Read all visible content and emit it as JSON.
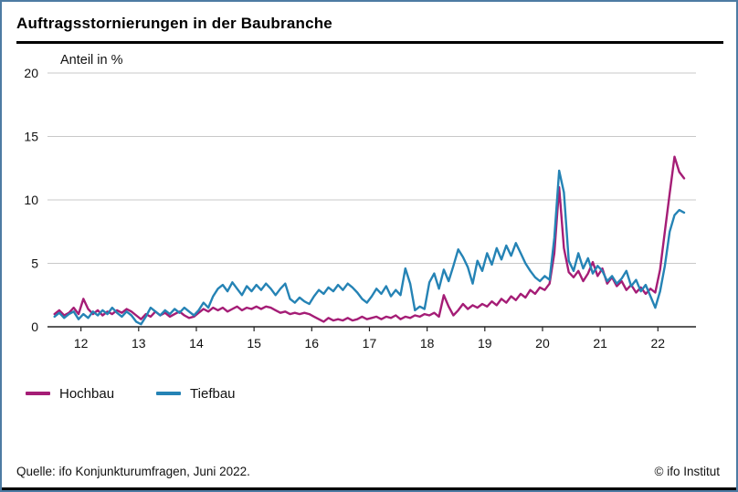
{
  "page": {
    "title": "Auftragsstornierungen in der Baubranche",
    "source": "Quelle: ifo Konjunkturumfragen, Juni 2022.",
    "copyright": "© ifo Institut"
  },
  "colors": {
    "frame": "#4d7ba3",
    "grid": "#c8c8c8",
    "axis": "#222222",
    "hochbau": "#a51d76",
    "tiefbau": "#2583b5"
  },
  "chart_data": {
    "type": "line",
    "title": "Auftragsstornierungen in der Baubranche",
    "ylabel": "Anteil in %",
    "xlabel": "",
    "ylim": [
      0,
      20
    ],
    "yticks": [
      0,
      5,
      10,
      15,
      20
    ],
    "xlim": [
      2011.42,
      2022.66
    ],
    "xtick_positions": [
      2012,
      2013,
      2014,
      2015,
      2016,
      2017,
      2018,
      2019,
      2020,
      2021,
      2022
    ],
    "xtick_labels": [
      "12",
      "13",
      "14",
      "15",
      "16",
      "17",
      "18",
      "19",
      "20",
      "21",
      "22"
    ],
    "x_start": 2011.5417,
    "x_step": 0.0833,
    "grid": true,
    "legend_position": "bottom-left",
    "series": [
      {
        "name": "Hochbau",
        "color": "#a51d76",
        "values": [
          1.0,
          1.3,
          0.9,
          1.1,
          1.5,
          1.0,
          2.2,
          1.4,
          1.0,
          1.3,
          0.9,
          1.2,
          1.0,
          1.3,
          1.1,
          1.4,
          1.2,
          0.9,
          0.6,
          1.0,
          0.8,
          1.2,
          0.9,
          1.1,
          0.8,
          1.0,
          1.2,
          0.9,
          0.7,
          0.8,
          1.1,
          1.4,
          1.2,
          1.5,
          1.3,
          1.5,
          1.2,
          1.4,
          1.6,
          1.3,
          1.5,
          1.4,
          1.6,
          1.4,
          1.6,
          1.5,
          1.3,
          1.1,
          1.2,
          1.0,
          1.1,
          1.0,
          1.1,
          1.0,
          0.8,
          0.6,
          0.4,
          0.7,
          0.5,
          0.6,
          0.5,
          0.7,
          0.5,
          0.6,
          0.8,
          0.6,
          0.7,
          0.8,
          0.6,
          0.8,
          0.7,
          0.9,
          0.6,
          0.8,
          0.7,
          0.9,
          0.8,
          1.0,
          0.9,
          1.1,
          0.8,
          2.5,
          1.6,
          0.9,
          1.3,
          1.8,
          1.4,
          1.7,
          1.5,
          1.8,
          1.6,
          2.0,
          1.7,
          2.2,
          1.9,
          2.4,
          2.1,
          2.6,
          2.3,
          2.9,
          2.6,
          3.1,
          2.9,
          3.4,
          5.8,
          11.0,
          6.2,
          4.3,
          3.9,
          4.4,
          3.6,
          4.2,
          5.1,
          4.0,
          4.6,
          3.4,
          3.9,
          3.2,
          3.6,
          2.9,
          3.3,
          2.7,
          3.1,
          2.6,
          3.0,
          2.7,
          4.5,
          7.5,
          10.5,
          13.4,
          12.2,
          11.7
        ]
      },
      {
        "name": "Tiefbau",
        "color": "#2583b5",
        "values": [
          0.8,
          1.1,
          0.7,
          1.0,
          1.2,
          0.6,
          1.0,
          0.7,
          1.2,
          0.9,
          1.3,
          1.0,
          1.5,
          1.1,
          0.8,
          1.2,
          0.9,
          0.4,
          0.2,
          0.8,
          1.5,
          1.2,
          0.9,
          1.3,
          1.0,
          1.4,
          1.1,
          1.5,
          1.2,
          0.9,
          1.3,
          1.9,
          1.5,
          2.4,
          3.0,
          3.3,
          2.8,
          3.5,
          3.0,
          2.5,
          3.2,
          2.8,
          3.3,
          2.9,
          3.4,
          3.0,
          2.5,
          3.0,
          3.4,
          2.2,
          1.9,
          2.3,
          2.0,
          1.8,
          2.4,
          2.9,
          2.6,
          3.1,
          2.8,
          3.3,
          2.9,
          3.4,
          3.1,
          2.7,
          2.2,
          1.9,
          2.4,
          3.0,
          2.6,
          3.2,
          2.4,
          2.9,
          2.5,
          4.6,
          3.4,
          1.3,
          1.6,
          1.4,
          3.5,
          4.2,
          3.0,
          4.5,
          3.6,
          4.8,
          6.1,
          5.5,
          4.7,
          3.4,
          5.2,
          4.4,
          5.8,
          4.9,
          6.2,
          5.3,
          6.4,
          5.6,
          6.6,
          5.8,
          5.0,
          4.4,
          3.9,
          3.6,
          4.0,
          3.7,
          7.0,
          12.3,
          10.6,
          5.2,
          4.4,
          5.8,
          4.6,
          5.4,
          4.2,
          4.8,
          4.4,
          3.6,
          4.0,
          3.4,
          3.8,
          4.4,
          3.2,
          3.7,
          2.8,
          3.3,
          2.4,
          1.5,
          2.8,
          4.8,
          7.5,
          8.8,
          9.2,
          9.0
        ]
      }
    ]
  }
}
